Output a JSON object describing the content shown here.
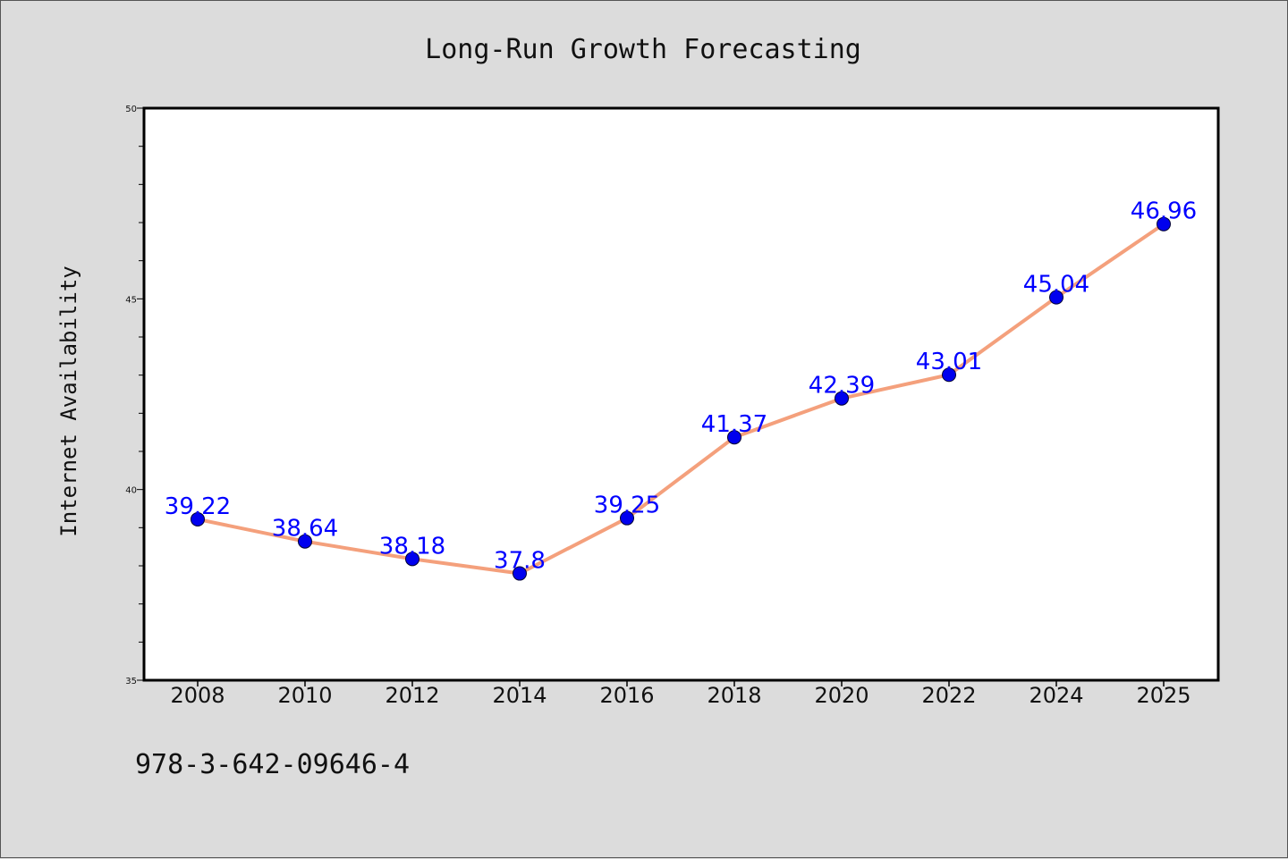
{
  "chart_data": {
    "type": "line",
    "title": "Long-Run Growth Forecasting",
    "xlabel": "",
    "ylabel": "Internet Availability",
    "categories": [
      "2008",
      "2010",
      "2012",
      "2014",
      "2016",
      "2018",
      "2020",
      "2022",
      "2024",
      "2025"
    ],
    "series": [
      {
        "values": [
          39.22,
          38.64,
          38.18,
          37.8,
          39.25,
          41.37,
          42.39,
          43.01,
          45.04,
          46.96
        ],
        "labels": [
          "39.22",
          "38.64",
          "38.18",
          "37.8",
          "39.25",
          "41.37",
          "42.39",
          "43.01",
          "45.04",
          "46.96"
        ]
      }
    ],
    "ylim": [
      35,
      50
    ],
    "yticks": [
      "35",
      "40",
      "45",
      "50"
    ],
    "grid": false,
    "colors": {
      "line": "#f4a07c",
      "marker": "#0000ee",
      "label": "#0000ff",
      "background": "#dcdcdc",
      "plot_bg": "#ffffff"
    }
  },
  "footer": {
    "text": "978-3-642-09646-4"
  }
}
